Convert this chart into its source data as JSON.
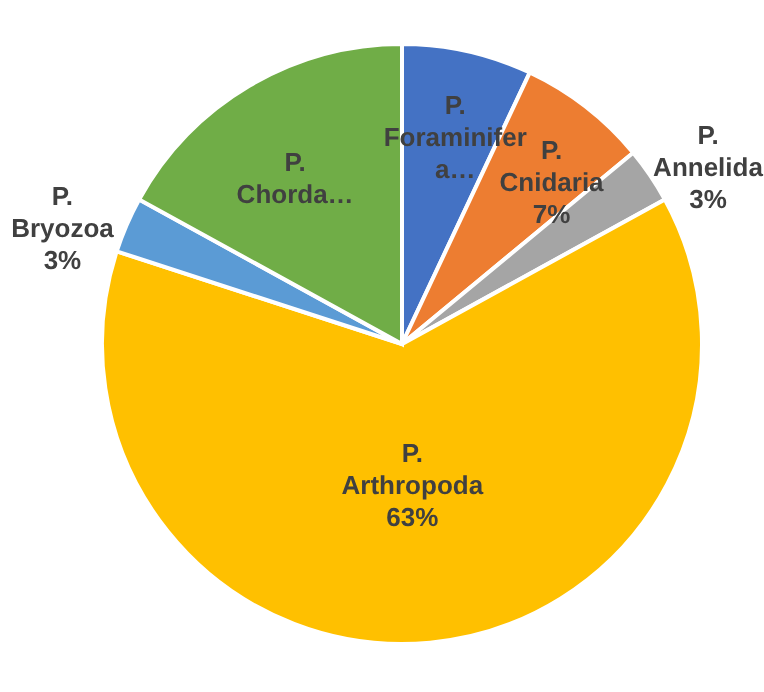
{
  "chart_data": {
    "type": "pie",
    "categories": [
      "P. Foraminifera…",
      "P. Cnidaria",
      "P. Annelida",
      "P. Arthropoda",
      "P. Bryozoa",
      "P. Chorda…"
    ],
    "values": [
      7,
      7,
      3,
      63,
      3,
      17
    ],
    "colors": [
      "#4472c4",
      "#ed7d31",
      "#a5a5a5",
      "#ffc000",
      "#5b9bd5",
      "#70ad47"
    ],
    "value_labels": [
      null,
      "7%",
      "3%",
      "63%",
      "3%",
      null
    ]
  }
}
